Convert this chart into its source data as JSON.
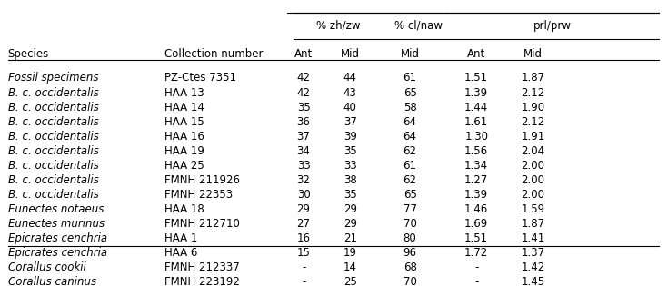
{
  "col_groups": [
    {
      "label": "% zh/zw",
      "cols": [
        "Ant",
        "Mid"
      ],
      "span": [
        2,
        4
      ]
    },
    {
      "label": "% cl/naw",
      "cols": [
        "Mid"
      ],
      "span": [
        4,
        5
      ]
    },
    {
      "label": "prl/prw",
      "cols": [
        "Ant",
        "Mid"
      ],
      "span": [
        5,
        7
      ]
    }
  ],
  "header_row1_labels": [
    "% zh/zw",
    "% cl/naw",
    "prl/prw"
  ],
  "header_row2_labels": [
    "Species",
    "Collection number",
    "Ant",
    "Mid",
    "Mid",
    "Ant",
    "Mid"
  ],
  "rows": [
    [
      "Fossil specimens",
      "PZ-Ctes 7351",
      "42",
      "44",
      "61",
      "1.51",
      "1.87"
    ],
    [
      "B. c. occidentalis",
      "HAA 13",
      "42",
      "43",
      "65",
      "1.39",
      "2.12"
    ],
    [
      "B. c. occidentalis",
      "HAA 14",
      "35",
      "40",
      "58",
      "1.44",
      "1.90"
    ],
    [
      "B. c. occidentalis",
      "HAA 15",
      "36",
      "37",
      "64",
      "1.61",
      "2.12"
    ],
    [
      "B. c. occidentalis",
      "HAA 16",
      "37",
      "39",
      "64",
      "1.30",
      "1.91"
    ],
    [
      "B. c. occidentalis",
      "HAA 19",
      "34",
      "35",
      "62",
      "1.56",
      "2.04"
    ],
    [
      "B. c. occidentalis",
      "HAA 25",
      "33",
      "33",
      "61",
      "1.34",
      "2.00"
    ],
    [
      "B. c. occidentalis",
      "FMNH 211926",
      "32",
      "38",
      "62",
      "1.27",
      "2.00"
    ],
    [
      "B. c. occidentalis",
      "FMNH 22353",
      "30",
      "35",
      "65",
      "1.39",
      "2.00"
    ],
    [
      "Eunectes notaeus",
      "HAA 18",
      "29",
      "29",
      "77",
      "1.46",
      "1.59"
    ],
    [
      "Eunectes murinus",
      "FMNH 212710",
      "27",
      "29",
      "70",
      "1.69",
      "1.87"
    ],
    [
      "Epicrates cenchria",
      "HAA 1",
      "16",
      "21",
      "80",
      "1.51",
      "1.41"
    ],
    [
      "Epicrates cenchria",
      "HAA 6",
      "15",
      "19",
      "96",
      "1.72",
      "1.37"
    ],
    [
      "Corallus cookii",
      "FMNH 212337",
      "-",
      "14",
      "68",
      "-",
      "1.42"
    ],
    [
      "Corallus caninus",
      "FMNH 223192",
      "-",
      "25",
      "70",
      "-",
      "1.45"
    ]
  ],
  "italic_rows": [
    1,
    2,
    3,
    4,
    5,
    6,
    7,
    8,
    9,
    10,
    11,
    12,
    13,
    14,
    15
  ],
  "italic_species": true,
  "bg_color": "#ffffff",
  "text_color": "#000000",
  "font_size": 8.5,
  "header_font_size": 8.5
}
